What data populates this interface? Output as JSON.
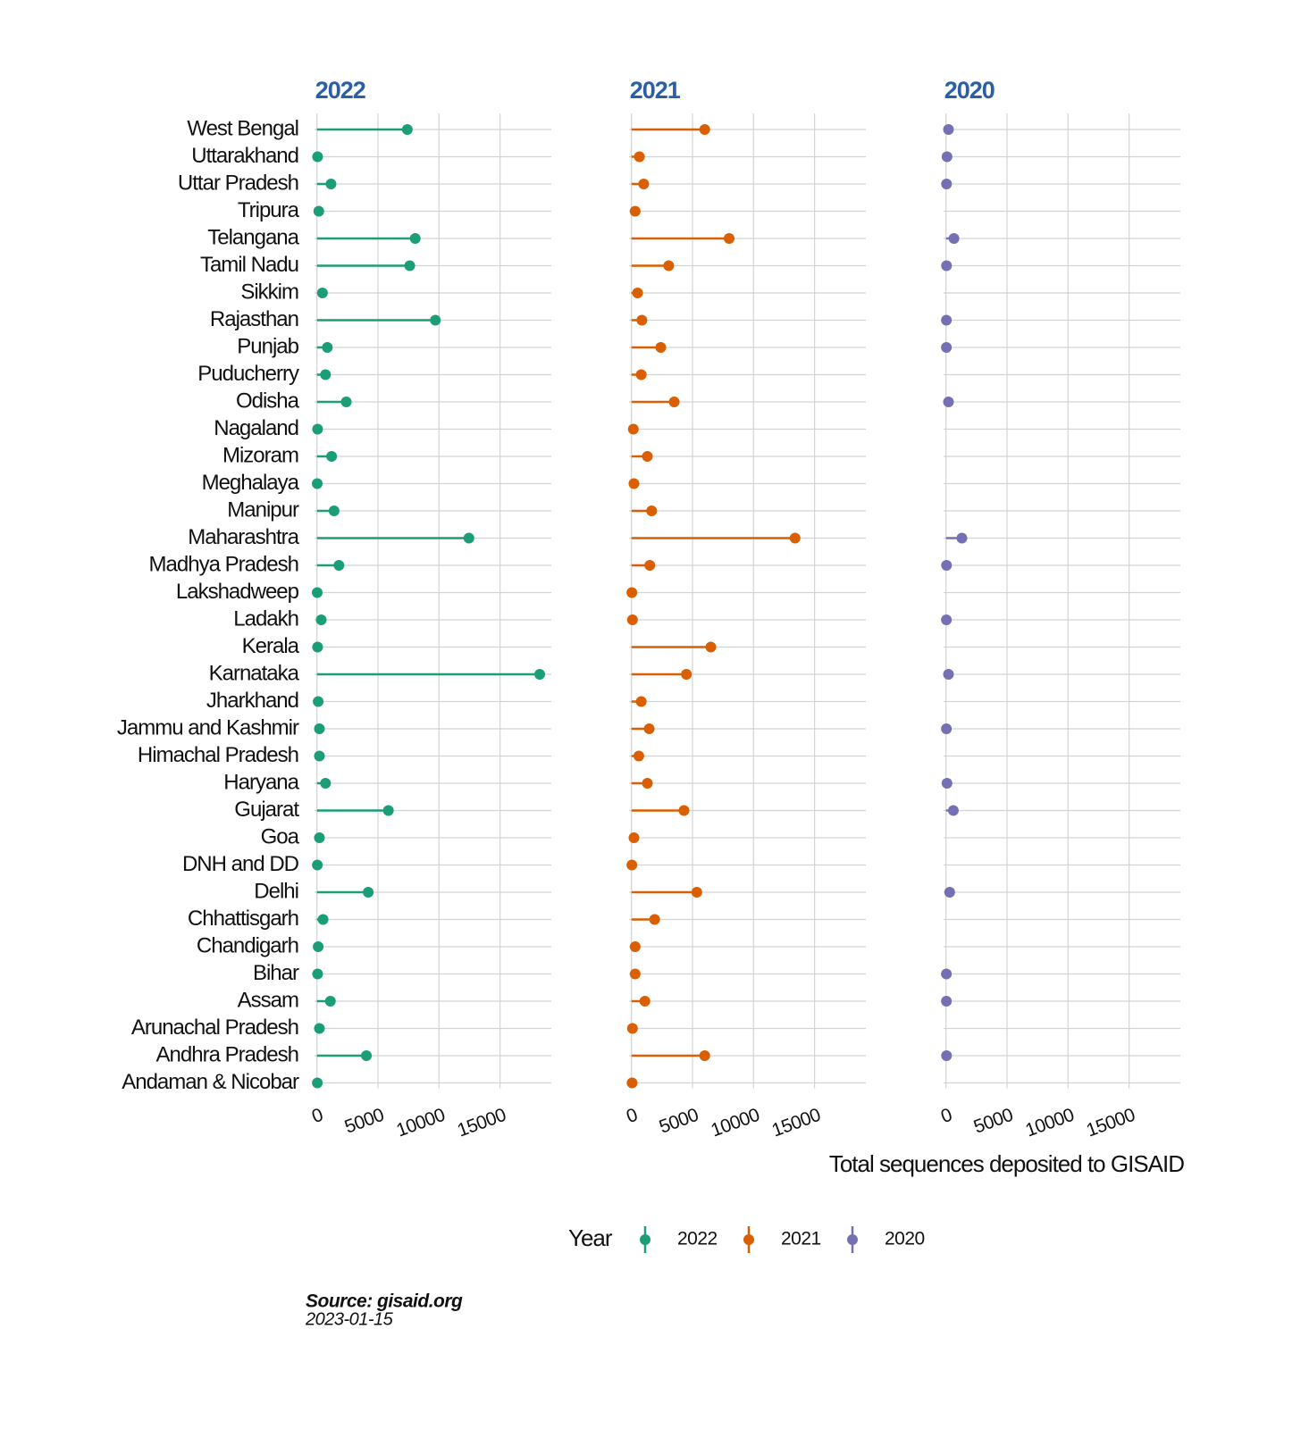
{
  "chart_data": {
    "type": "lollipop",
    "categories": [
      "West Bengal",
      "Uttarakhand",
      "Uttar Pradesh",
      "Tripura",
      "Telangana",
      "Tamil Nadu",
      "Sikkim",
      "Rajasthan",
      "Punjab",
      "Puducherry",
      "Odisha",
      "Nagaland",
      "Mizoram",
      "Meghalaya",
      "Manipur",
      "Maharashtra",
      "Madhya Pradesh",
      "Lakshadweep",
      "Ladakh",
      "Kerala",
      "Karnataka",
      "Jharkhand",
      "Jammu and Kashmir",
      "Himachal Pradesh",
      "Haryana",
      "Gujarat",
      "Goa",
      "DNH and DD",
      "Delhi",
      "Chhattisgarh",
      "Chandigarh",
      "Bihar",
      "Assam",
      "Arunachal Pradesh",
      "Andhra Pradesh",
      "Andaman & Nicobar"
    ],
    "series": [
      {
        "name": "2022",
        "color": "#1b9e77",
        "values": [
          7400,
          50,
          1150,
          150,
          8050,
          7600,
          450,
          9700,
          850,
          700,
          2400,
          50,
          1200,
          20,
          1400,
          12450,
          1800,
          20,
          350,
          50,
          18250,
          100,
          200,
          200,
          700,
          5850,
          200,
          30,
          4200,
          500,
          100,
          50,
          1100,
          200,
          4050,
          30
        ]
      },
      {
        "name": "2021",
        "color": "#d95f02",
        "values": [
          6000,
          650,
          1000,
          300,
          8000,
          3050,
          500,
          850,
          2400,
          800,
          3500,
          150,
          1300,
          200,
          1650,
          13400,
          1500,
          30,
          80,
          6500,
          4500,
          800,
          1450,
          600,
          1300,
          4300,
          200,
          30,
          5350,
          1900,
          300,
          300,
          1100,
          80,
          6000,
          50
        ]
      },
      {
        "name": "2020",
        "color": "#7570b3",
        "values": [
          200,
          80,
          40,
          null,
          650,
          40,
          null,
          30,
          30,
          null,
          200,
          null,
          null,
          null,
          null,
          1300,
          40,
          null,
          30,
          null,
          200,
          null,
          30,
          null,
          80,
          600,
          null,
          null,
          300,
          null,
          null,
          30,
          30,
          null,
          40,
          null
        ]
      }
    ],
    "xlim": [
      -200,
      19200
    ],
    "xticks": [
      0,
      5000,
      10000,
      15000
    ],
    "grid": true,
    "x_label": "Total sequences deposited to GISAID",
    "legend_title": "Year",
    "caption": "Source: gisaid.org",
    "date": "2023-01-15"
  }
}
